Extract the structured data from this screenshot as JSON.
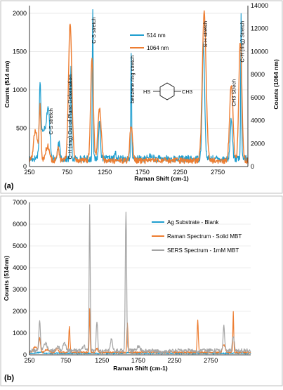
{
  "chart_data": [
    {
      "type": "line",
      "panel_label": "(a)",
      "xlabel": "Raman Shift (cm-1)",
      "ylabel_left": "Counts (514 nm)",
      "ylabel_right": "Counts (1064 nm)",
      "xlim": [
        250,
        3150
      ],
      "ylim_left": [
        0,
        2100
      ],
      "ylim_right": [
        0,
        14000
      ],
      "x_ticks": [
        "250",
        "750",
        "1250",
        "1750",
        "2250",
        "2750"
      ],
      "x_tick_values": [
        250,
        750,
        1250,
        1750,
        2250,
        2750
      ],
      "y_left_ticks": [
        "0",
        "500",
        "1000",
        "1500",
        "2000"
      ],
      "y_left_tick_values": [
        0,
        500,
        1000,
        1500,
        2000
      ],
      "y_right_ticks": [
        "0",
        "2000",
        "4000",
        "6000",
        "8000",
        "10000",
        "12000",
        "14000"
      ],
      "y_right_tick_values": [
        0,
        2000,
        4000,
        6000,
        8000,
        10000,
        12000,
        14000
      ],
      "legend": {
        "placement": "upper-middle",
        "entries": [
          "514 nm",
          "1064 nm"
        ]
      },
      "series": [
        {
          "name": "514 nm",
          "axis": "left",
          "color": "#1f9ecf",
          "baseline": 100,
          "peaks": [
            [
              390,
              940,
              10
            ],
            [
              440,
              500,
              40
            ],
            [
              500,
              640,
              20
            ],
            [
              640,
              300,
              15
            ],
            [
              800,
              1340,
              7
            ],
            [
              1090,
              2090,
              6
            ],
            [
              1180,
              600,
              12
            ],
            [
              1390,
              180,
              8
            ],
            [
              1600,
              1440,
              6
            ],
            [
              1860,
              130,
              30
            ],
            [
              2560,
              1590,
              16
            ],
            [
              2930,
              630,
              14
            ],
            [
              3060,
              1960,
              6
            ]
          ]
        },
        {
          "name": "1064 nm",
          "axis": "right",
          "color": "#ed7d31",
          "baseline": 500,
          "peaks": [
            [
              330,
              3200,
              25
            ],
            [
              390,
              5200,
              12
            ],
            [
              490,
              1800,
              25
            ],
            [
              630,
              1500,
              15
            ],
            [
              790,
              12400,
              22
            ],
            [
              1080,
              9400,
              18
            ],
            [
              1180,
              5000,
              22
            ],
            [
              1600,
              3600,
              18
            ],
            [
              2570,
              13400,
              25
            ],
            [
              2930,
              7100,
              22
            ],
            [
              3050,
              10900,
              20
            ]
          ]
        }
      ],
      "annotations": [
        {
          "text": "C-S stretch",
          "x": 530,
          "y": 760
        },
        {
          "text": "C-H (ring) Out-of-Plane Deformation",
          "x": 780,
          "y": 1200
        },
        {
          "text": "C-S stretch",
          "x": 1100,
          "y": 1950
        },
        {
          "text": "benzene ring stretch",
          "x": 1610,
          "y": 1450
        },
        {
          "text": "S-H stretch",
          "x": 2580,
          "y": 1900
        },
        {
          "text": "CH3 Strech",
          "x": 2960,
          "y": 1140
        },
        {
          "text": "C-H (ring) Stretch",
          "x": 3070,
          "y": 1900
        }
      ],
      "molecule_labels": {
        "left": "HS",
        "right": "CH3"
      }
    },
    {
      "type": "line",
      "panel_label": "(b)",
      "xlabel": "Raman Shift (cm-1)",
      "ylabel": "Counts (514nm)",
      "xlim": [
        250,
        3300
      ],
      "ylim": [
        0,
        7000
      ],
      "x_ticks": [
        "250",
        "750",
        "1250",
        "1750",
        "2250",
        "2750"
      ],
      "x_tick_values": [
        250,
        750,
        1250,
        1750,
        2250,
        2750
      ],
      "y_ticks": [
        "0",
        "1000",
        "2000",
        "3000",
        "4000",
        "5000",
        "6000",
        "7000"
      ],
      "y_tick_values": [
        0,
        1000,
        2000,
        3000,
        4000,
        5000,
        6000,
        7000
      ],
      "legend": {
        "placement": "right",
        "entries": [
          "Ag Substrate - Blank",
          "Raman Spectrum - Solid MBT",
          "SERS Spectrum - 1mM MBT"
        ]
      },
      "series": [
        {
          "name": "Ag Substrate - Blank",
          "color": "#1f9ecf",
          "baseline": 70,
          "peaks": [
            [
              400,
              120,
              40
            ],
            [
              1100,
              80,
              50
            ],
            [
              1600,
              90,
              50
            ]
          ]
        },
        {
          "name": "Raman Spectrum - Solid MBT",
          "color": "#ed7d31",
          "baseline": 110,
          "peaks": [
            [
              330,
              380,
              25
            ],
            [
              390,
              760,
              12
            ],
            [
              490,
              250,
              25
            ],
            [
              630,
              300,
              15
            ],
            [
              800,
              1300,
              8
            ],
            [
              1080,
              2120,
              6
            ],
            [
              1180,
              300,
              12
            ],
            [
              1600,
              1500,
              7
            ],
            [
              2570,
              1580,
              8
            ],
            [
              2930,
              460,
              18
            ],
            [
              3060,
              1950,
              6
            ]
          ]
        },
        {
          "name": "SERS Spectrum - 1mM MBT",
          "color": "#a5a5a5",
          "baseline": 200,
          "peaks": [
            [
              390,
              1600,
              10
            ],
            [
              470,
              500,
              25
            ],
            [
              640,
              380,
              20
            ],
            [
              730,
              500,
              20
            ],
            [
              1000,
              450,
              15
            ],
            [
              1080,
              6880,
              7
            ],
            [
              1180,
              1480,
              10
            ],
            [
              1380,
              750,
              12
            ],
            [
              1580,
              6530,
              9
            ],
            [
              1750,
              350,
              25
            ],
            [
              2100,
              120,
              60
            ],
            [
              2560,
              160,
              30
            ],
            [
              2930,
              1400,
              10
            ],
            [
              3060,
              900,
              12
            ]
          ]
        }
      ]
    }
  ]
}
